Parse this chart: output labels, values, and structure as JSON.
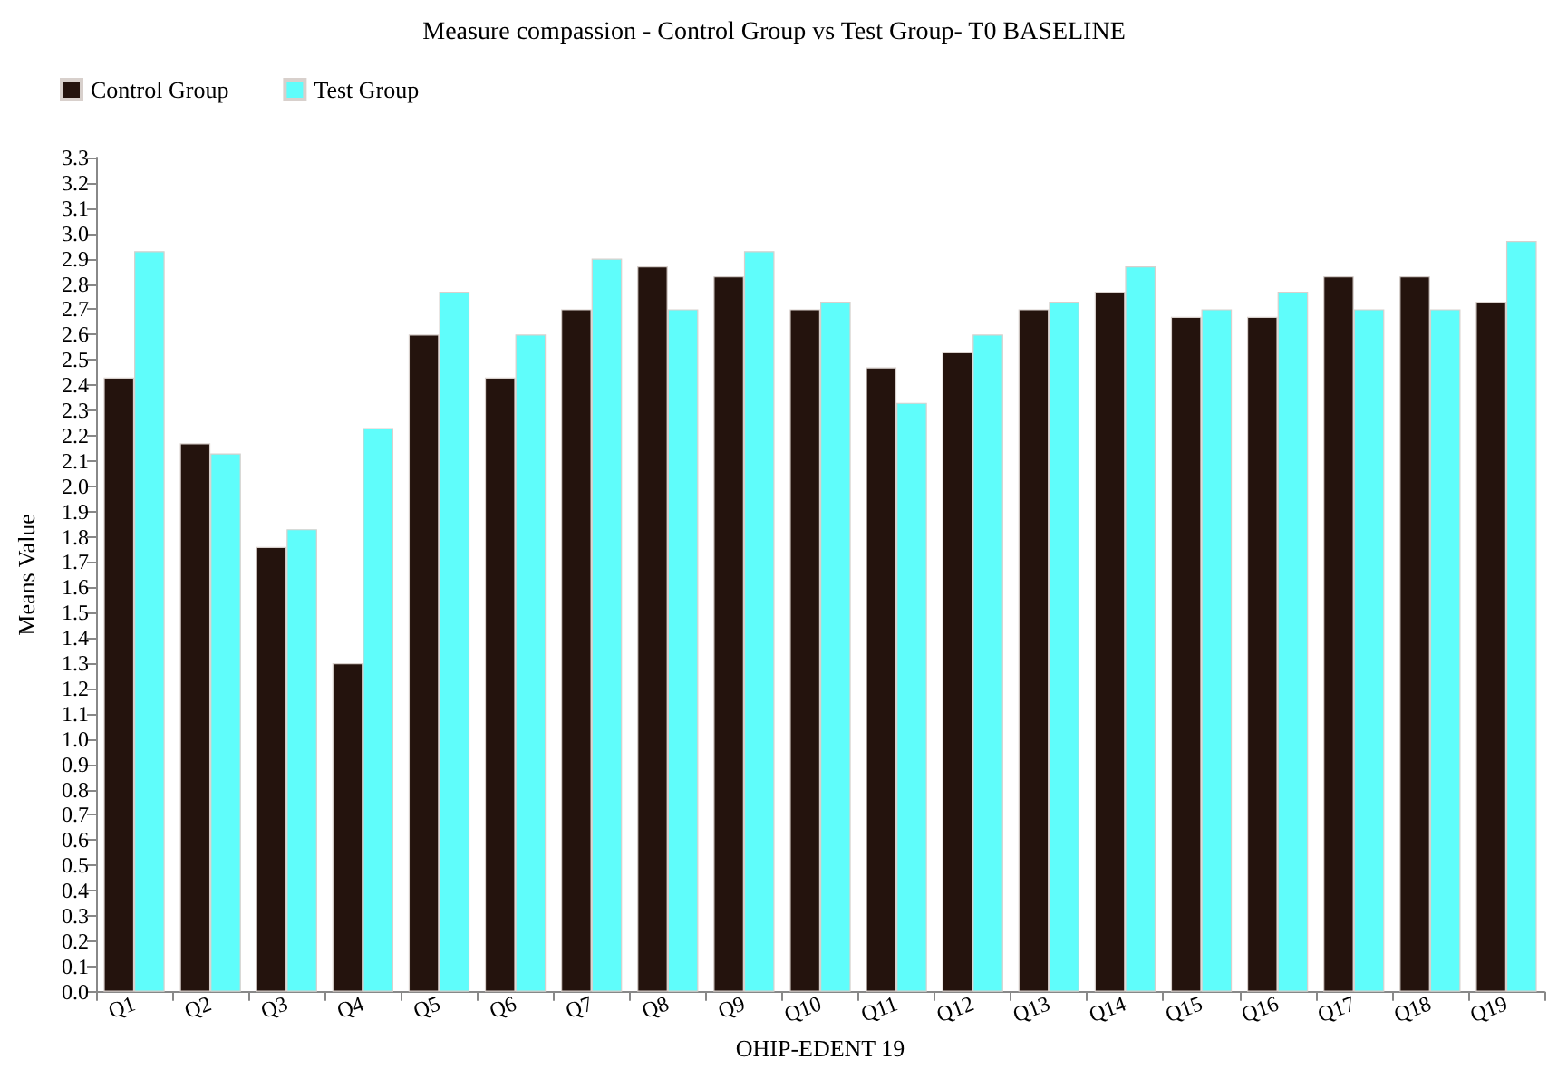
{
  "chart_data": {
    "type": "bar",
    "title": "Measure compassion - Control Group vs Test Group- T0 BASELINE",
    "xlabel": "OHIP-EDENT 19",
    "ylabel": "Means Value",
    "categories": [
      "Q1",
      "Q2",
      "Q3",
      "Q4",
      "Q5",
      "Q6",
      "Q7",
      "Q8",
      "Q9",
      "Q10",
      "Q11",
      "Q12",
      "Q13",
      "Q14",
      "Q15",
      "Q16",
      "Q17",
      "Q18",
      "Q19"
    ],
    "series": [
      {
        "name": "Control Group",
        "color": "#24130d",
        "values": [
          2.43,
          2.17,
          1.76,
          1.3,
          2.6,
          2.43,
          2.7,
          2.87,
          2.83,
          2.7,
          2.47,
          2.53,
          2.7,
          2.77,
          2.67,
          2.67,
          2.83,
          2.83,
          2.73
        ]
      },
      {
        "name": "Test Group",
        "color": "#5ffdfb",
        "values": [
          2.93,
          2.13,
          1.83,
          2.23,
          2.77,
          2.6,
          2.9,
          2.7,
          2.93,
          2.73,
          2.33,
          2.6,
          2.73,
          2.87,
          2.7,
          2.77,
          2.7,
          2.7,
          2.97
        ]
      }
    ],
    "ylim": [
      0,
      3.3
    ],
    "yticks": [
      {
        "value": 0,
        "label": "0.0"
      },
      0.1,
      0.2,
      0.3,
      0.4,
      0.5,
      0.6,
      0.7,
      0.8,
      0.9,
      {
        "value": 1,
        "label": "1.0"
      },
      1.1,
      1.2,
      1.3,
      1.4,
      1.5,
      1.6,
      1.7,
      1.8,
      1.9,
      {
        "value": 2,
        "label": "2.0"
      },
      2.1,
      2.2,
      2.3,
      2.4,
      2.5,
      2.6,
      2.7,
      2.8,
      2.9,
      {
        "value": 3,
        "label": "3.0"
      },
      3.1,
      3.2,
      3.3
    ],
    "grid": false,
    "legend": "top left"
  }
}
